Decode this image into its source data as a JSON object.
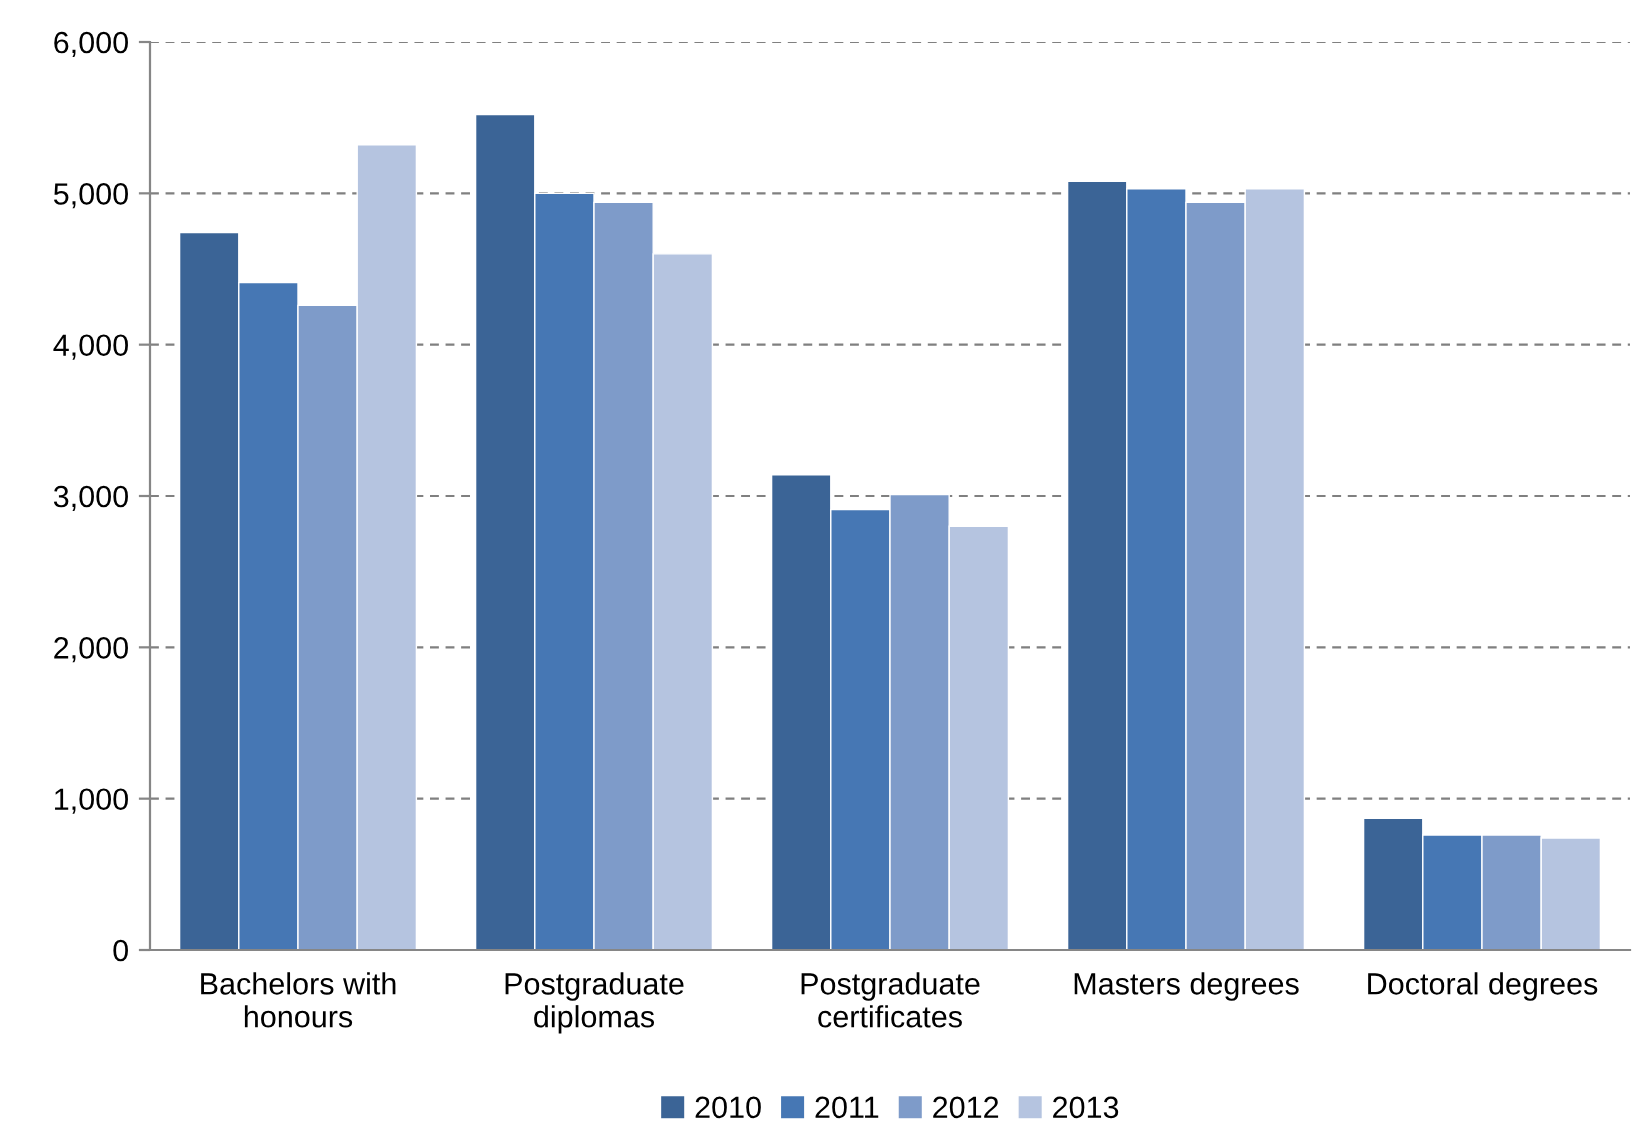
{
  "chart_data": {
    "type": "bar",
    "categories": [
      "Bachelors with\nhonours",
      "Postgraduate\ndiplomas",
      "Postgraduate\ncertificates",
      "Masters degrees",
      "Doctoral degrees"
    ],
    "series": [
      {
        "name": "2010",
        "color": "#3b6496",
        "values": [
          4740,
          5520,
          3140,
          5080,
          870
        ]
      },
      {
        "name": "2011",
        "color": "#4677b4",
        "values": [
          4410,
          5000,
          2910,
          5030,
          760
        ]
      },
      {
        "name": "2012",
        "color": "#7e9bc9",
        "values": [
          4260,
          4940,
          3010,
          4940,
          760
        ]
      },
      {
        "name": "2013",
        "color": "#b5c4e0",
        "values": [
          5320,
          4600,
          2800,
          5030,
          740
        ]
      }
    ],
    "ylim": [
      0,
      6000
    ],
    "yticks": [
      {
        "value": 0,
        "label": "0"
      },
      {
        "value": 1000,
        "label": "1,000"
      },
      {
        "value": 2000,
        "label": "2,000"
      },
      {
        "value": 3000,
        "label": "3,000"
      },
      {
        "value": 4000,
        "label": "4,000"
      },
      {
        "value": 5000,
        "label": "5,000"
      },
      {
        "value": 6000,
        "label": "6,000"
      }
    ],
    "grid": "y",
    "legend": "bottom"
  }
}
